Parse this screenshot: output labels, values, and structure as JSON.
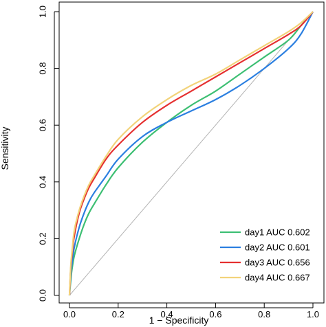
{
  "chart_data": {
    "type": "line",
    "xlabel": "1 − Specificity",
    "ylabel": "Sensitivity",
    "xlim": [
      0,
      1
    ],
    "ylim": [
      0,
      1
    ],
    "x_ticks": [
      "0.0",
      "0.2",
      "0.4",
      "0.6",
      "0.8",
      "1.0"
    ],
    "y_ticks": [
      "0.0",
      "0.2",
      "0.4",
      "0.6",
      "0.8",
      "1.0"
    ],
    "legend_position": "bottom-right",
    "reference_line": {
      "x": [
        0,
        1
      ],
      "y": [
        0,
        1
      ],
      "color": "#b3b3b3"
    },
    "x": [
      0,
      0.005,
      0.01,
      0.02,
      0.04,
      0.06,
      0.08,
      0.1,
      0.15,
      0.2,
      0.3,
      0.4,
      0.5,
      0.6,
      0.7,
      0.8,
      0.9,
      0.95,
      1.0
    ],
    "series": [
      {
        "name": "day1 AUC 0.602",
        "color": "#3dbf73",
        "y": [
          0,
          0.05,
          0.09,
          0.14,
          0.2,
          0.25,
          0.29,
          0.32,
          0.39,
          0.45,
          0.54,
          0.61,
          0.67,
          0.72,
          0.78,
          0.84,
          0.9,
          0.95,
          1.0
        ]
      },
      {
        "name": "day2 AUC 0.601",
        "color": "#2b7fe0",
        "y": [
          0,
          0.07,
          0.11,
          0.17,
          0.24,
          0.29,
          0.33,
          0.36,
          0.42,
          0.48,
          0.56,
          0.61,
          0.65,
          0.69,
          0.74,
          0.8,
          0.87,
          0.92,
          1.0
        ]
      },
      {
        "name": "day3 AUC 0.656",
        "color": "#e53030",
        "y": [
          0,
          0.09,
          0.14,
          0.21,
          0.29,
          0.34,
          0.38,
          0.41,
          0.48,
          0.53,
          0.61,
          0.67,
          0.72,
          0.77,
          0.82,
          0.87,
          0.92,
          0.95,
          1.0
        ]
      },
      {
        "name": "day4 AUC 0.667",
        "color": "#f2d37a",
        "y": [
          0,
          0.1,
          0.15,
          0.23,
          0.3,
          0.35,
          0.39,
          0.42,
          0.49,
          0.55,
          0.63,
          0.69,
          0.74,
          0.78,
          0.83,
          0.88,
          0.93,
          0.96,
          1.0
        ]
      }
    ]
  }
}
